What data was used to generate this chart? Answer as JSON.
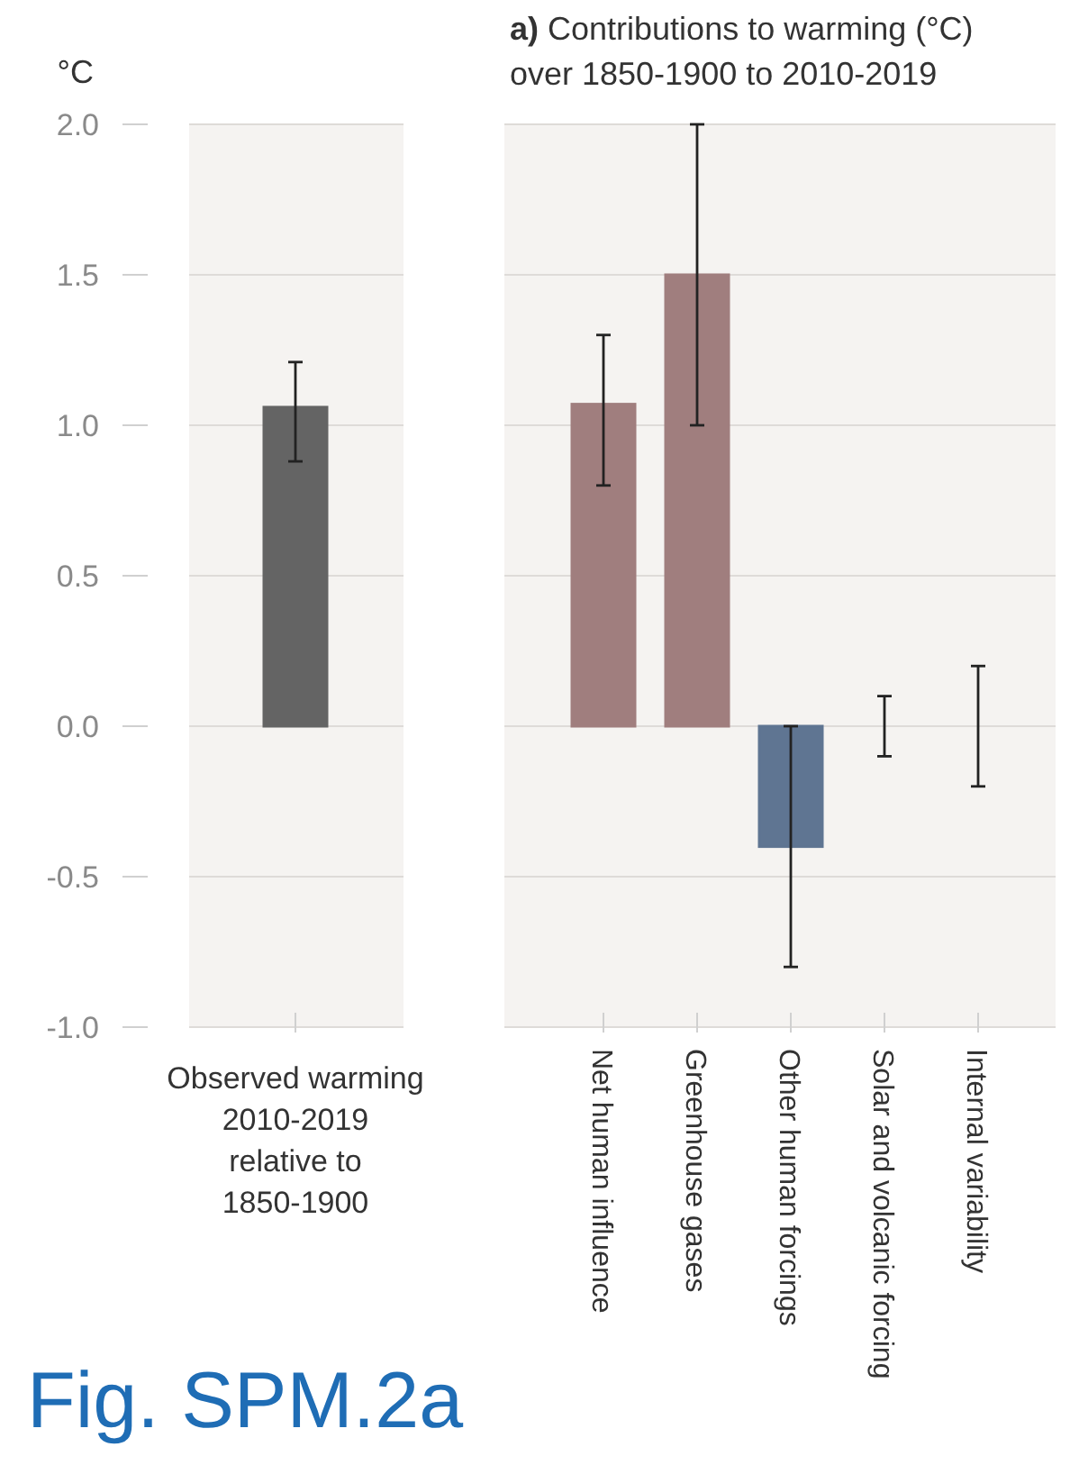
{
  "chart_data": [
    {
      "type": "bar",
      "ylabel": "°C",
      "categories": [
        "Observed warming 2010-2019 relative to 1850-1900"
      ],
      "values": [
        1.06
      ],
      "colors": [
        "#646464"
      ],
      "errors": [
        [
          0.88,
          1.21
        ]
      ],
      "ylim": [
        -1,
        2
      ],
      "yticks": [
        {
          "value": -1,
          "label": "-1.0"
        },
        {
          "value": -0.5,
          "label": "-0.5"
        },
        {
          "value": 0,
          "label": "0.0"
        },
        {
          "value": 0.5,
          "label": "0.5"
        },
        {
          "value": 1,
          "label": "1.0"
        },
        {
          "value": 1.5,
          "label": "1.5"
        },
        {
          "value": 2,
          "label": "2.0"
        }
      ],
      "grid": "y",
      "annotations": [
        "Fig. SPM.2a"
      ]
    },
    {
      "type": "bar",
      "title": "a) Contributions to warming (°C) over 1850-1900 to 2010-2019",
      "categories": [
        "Net human influence",
        "Greenhouse gases",
        "Other human forcings",
        "Solar and volcanic forcing",
        "Internal variability"
      ],
      "values": [
        1.07,
        1.5,
        -0.4,
        0,
        0
      ],
      "colors": [
        "#a07e7e",
        "#a07e7e",
        "#5f7592",
        "#c9c9c9",
        "#c9c9c9"
      ],
      "errors": [
        [
          0.8,
          1.3
        ],
        [
          1.0,
          2.0
        ],
        [
          -0.8,
          0.0
        ],
        [
          -0.1,
          0.1
        ],
        [
          -0.2,
          0.2
        ]
      ],
      "ylim": [
        -1,
        2
      ],
      "yticks": [
        -1,
        -0.5,
        0,
        0.5,
        1,
        1.5,
        2
      ],
      "grid": "y",
      "tick_labels": "x"
    }
  ]
}
